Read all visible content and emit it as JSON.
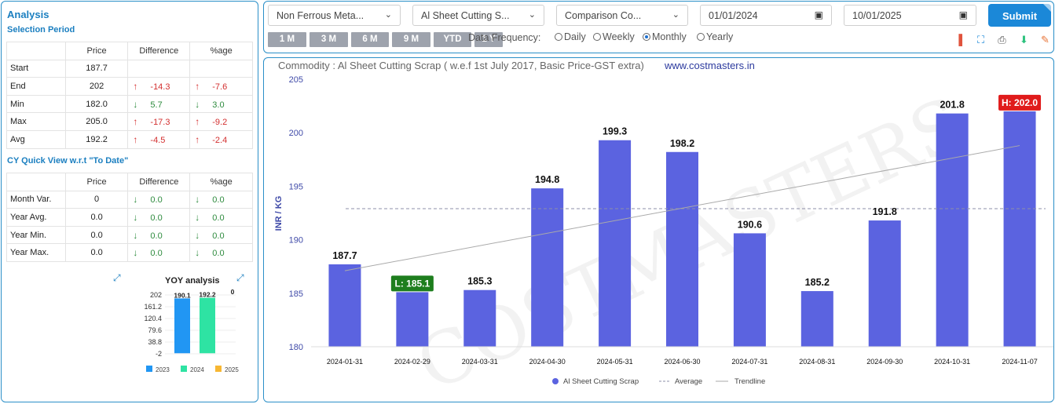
{
  "analysis": {
    "title": "Analysis",
    "selection_period_title": "Selection Period",
    "headers": [
      "Price",
      "Difference",
      "%age"
    ],
    "rows": [
      {
        "label": "Start",
        "price": "187.7",
        "diff": "",
        "pct": "",
        "dir": ""
      },
      {
        "label": "End",
        "price": "202",
        "diff": "-14.3",
        "pct": "-7.6",
        "dir": "up"
      },
      {
        "label": "Min",
        "price": "182.0",
        "diff": "5.7",
        "pct": "3.0",
        "dir": "down"
      },
      {
        "label": "Max",
        "price": "205.0",
        "diff": "-17.3",
        "pct": "-9.2",
        "dir": "up"
      },
      {
        "label": "Avg",
        "price": "192.2",
        "diff": "-4.5",
        "pct": "-2.4",
        "dir": "up"
      }
    ],
    "cy_title": "CY Quick View w.r.t \"To Date\"",
    "cy_rows": [
      {
        "label": "Month Var.",
        "price": "0",
        "diff": "0.0",
        "pct": "0.0",
        "dir": "down"
      },
      {
        "label": "Year Avg.",
        "price": "0.0",
        "diff": "0.0",
        "pct": "0.0",
        "dir": "down"
      },
      {
        "label": "Year Min.",
        "price": "0.0",
        "diff": "0.0",
        "pct": "0.0",
        "dir": "down"
      },
      {
        "label": "Year Max.",
        "price": "0.0",
        "diff": "0.0",
        "pct": "0.0",
        "dir": "down"
      }
    ]
  },
  "yoy": {
    "title": "YOY analysis",
    "y_ticks": [
      "202",
      "161.2",
      "120.4",
      "79.6",
      "38.8",
      "-2"
    ],
    "ymin": -2,
    "ymax": 202,
    "bars": [
      {
        "year": "2023",
        "value": 190.1,
        "label": "190.1",
        "color": "#2196f3"
      },
      {
        "year": "2024",
        "value": 192.2,
        "label": "192.2",
        "color": "#2ee3a3"
      },
      {
        "year": "2025",
        "value": 0,
        "label": "0",
        "color": "#f7b733"
      }
    ]
  },
  "controls": {
    "category": "Non Ferrous Meta...",
    "commodity": "Al Sheet Cutting S...",
    "comparison": "Comparison Co...",
    "from_date": "01/01/2024",
    "to_date": "10/01/2025",
    "submit_label": "Submit",
    "periods": [
      "1 M",
      "3 M",
      "6 M",
      "9 M",
      "YTD",
      "1 Y"
    ],
    "frequency_label": "Data Frequency:",
    "frequencies": [
      {
        "label": "Daily",
        "selected": false
      },
      {
        "label": "Weekly",
        "selected": false
      },
      {
        "label": "Monthly",
        "selected": true
      },
      {
        "label": "Yearly",
        "selected": false
      }
    ],
    "tools": [
      {
        "icon": "bar-chart-icon",
        "color": "#e0533d"
      },
      {
        "icon": "fullscreen-icon",
        "color": "#1b88d8"
      },
      {
        "icon": "print-icon",
        "color": "#555555"
      },
      {
        "icon": "download-icon",
        "color": "#2ec27e"
      },
      {
        "icon": "edit-icon",
        "color": "#e8763a"
      }
    ]
  },
  "chart_data": {
    "type": "bar",
    "title": "Commodity : Al Sheet Cutting Scrap ( w.e.f 1st July 2017, Basic Price-GST extra)",
    "source_link": "www.costmasters.in",
    "watermark": "COSTMASTERS",
    "ylabel": "INR / KG",
    "ylim": [
      180,
      205
    ],
    "y_ticks": [
      180,
      185,
      190,
      195,
      200,
      205
    ],
    "categories": [
      "2024-01-31",
      "2024-02-29",
      "2024-03-31",
      "2024-04-30",
      "2024-05-31",
      "2024-06-30",
      "2024-07-31",
      "2024-08-31",
      "2024-09-30",
      "2024-10-31",
      "2024-11-07"
    ],
    "series": [
      {
        "name": "Al Sheet Cutting Scrap",
        "values": [
          187.7,
          185.1,
          185.3,
          194.8,
          199.3,
          198.2,
          190.6,
          185.2,
          191.8,
          201.8,
          202.0
        ],
        "color": "#5b63e0"
      }
    ],
    "data_labels": [
      "187.7",
      "L: 185.1",
      "185.3",
      "194.8",
      "199.3",
      "198.2",
      "190.6",
      "185.2",
      "191.8",
      "201.8",
      "H: 202.0"
    ],
    "low_index": 1,
    "high_index": 10,
    "low_color": "#1e7e1e",
    "high_color": "#e01b1b",
    "average": 192.9,
    "trendline": [
      187.1,
      198.8
    ],
    "legend": [
      "Al Sheet Cutting Scrap",
      "Average",
      "Trendline"
    ],
    "legend_position": "bottom",
    "grid": false
  }
}
